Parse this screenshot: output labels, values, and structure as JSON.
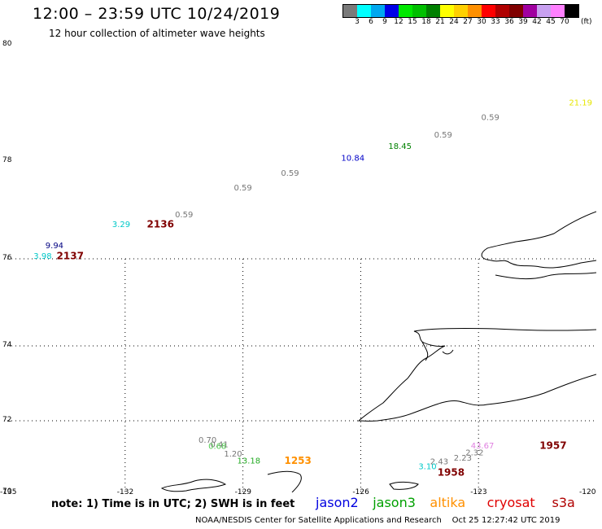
{
  "header": {
    "title": "12:00 – 23:59 UTC 10/24/2019",
    "subtitle": "12 hour collection of altimeter wave heights"
  },
  "colorbar": {
    "colors": [
      "#7a7a7a",
      "#00ffff",
      "#00a8f0",
      "#0000e8",
      "#00e800",
      "#00c000",
      "#008000",
      "#ffff00",
      "#ffd000",
      "#ff9000",
      "#ff0000",
      "#b00000",
      "#800000",
      "#a000a0",
      "#c8a0f0",
      "#ff80ff",
      "#000000"
    ],
    "labels": [
      "3",
      "6",
      "9",
      "12",
      "15",
      "18",
      "21",
      "24",
      "27",
      "30",
      "33",
      "36",
      "39",
      "42",
      "45",
      "70"
    ],
    "unit": "(ft)"
  },
  "map": {
    "lat_labels": [
      "80",
      "78",
      "76",
      "74",
      "72",
      "70"
    ],
    "lon_labels": [
      "-135",
      "-132",
      "-129",
      "-126",
      "-123",
      "-120"
    ],
    "observations": [
      {
        "text": "21.19",
        "color": "#e6e600",
        "lon": -120.4,
        "lat": 79.0
      },
      {
        "text": "0.59",
        "color": "#777777",
        "lon": -122.7,
        "lat": 78.75
      },
      {
        "text": "0.59",
        "color": "#777777",
        "lon": -123.9,
        "lat": 78.45
      },
      {
        "text": "18.45",
        "color": "#008000",
        "lon": -125.0,
        "lat": 78.25
      },
      {
        "text": "10.84",
        "color": "#0000c8",
        "lon": -126.2,
        "lat": 78.05
      },
      {
        "text": "0.59",
        "color": "#777777",
        "lon": -127.8,
        "lat": 77.75
      },
      {
        "text": "0.59",
        "color": "#777777",
        "lon": -129.0,
        "lat": 77.45
      },
      {
        "text": "0.59",
        "color": "#777777",
        "lon": -130.5,
        "lat": 76.9
      },
      {
        "text": "3.29",
        "color": "#00c8c8",
        "lon": -132.1,
        "lat": 76.7
      },
      {
        "text": "2136",
        "color": "#800000",
        "lon": -131.1,
        "lat": 76.7,
        "pass": true
      },
      {
        "text": "9.94",
        "color": "#000080",
        "lon": -133.8,
        "lat": 76.27
      },
      {
        "text": "3.98",
        "color": "#00c8c8",
        "lon": -134.1,
        "lat": 76.05
      },
      {
        "text": "2137",
        "color": "#800000",
        "lon": -133.4,
        "lat": 76.05,
        "pass": true
      },
      {
        "text": "0.70",
        "color": "#777777",
        "lon": -129.9,
        "lat": 71.45
      },
      {
        "text": "0.41",
        "color": "#777777",
        "lon": -129.6,
        "lat": 71.33
      },
      {
        "text": "0.68",
        "color": "#55cc55",
        "lon": -129.65,
        "lat": 71.28
      },
      {
        "text": "1.20",
        "color": "#777777",
        "lon": -129.25,
        "lat": 71.07
      },
      {
        "text": "13.18",
        "color": "#22aa22",
        "lon": -128.85,
        "lat": 70.88
      },
      {
        "text": "1253",
        "color": "#ff9000",
        "lon": -127.6,
        "lat": 70.88,
        "pass": true
      },
      {
        "text": "2.43",
        "color": "#777777",
        "lon": -124.0,
        "lat": 70.85
      },
      {
        "text": "2.23",
        "color": "#777777",
        "lon": -123.4,
        "lat": 70.95
      },
      {
        "text": "2.32",
        "color": "#777777",
        "lon": -123.1,
        "lat": 71.1
      },
      {
        "text": "43.67",
        "color": "#e080e0",
        "lon": -122.9,
        "lat": 71.3
      },
      {
        "text": "1957",
        "color": "#800000",
        "lon": -121.1,
        "lat": 71.3,
        "pass": true
      },
      {
        "text": "3.10",
        "color": "#00c8c8",
        "lon": -124.3,
        "lat": 70.72
      },
      {
        "text": "1958",
        "color": "#800000",
        "lon": -123.7,
        "lat": 70.55,
        "pass": true
      }
    ]
  },
  "legend": {
    "note": "note: 1) Time is in UTC; 2) SWH is in feet",
    "satellites": [
      {
        "name": "jason2",
        "color": "#0000e0"
      },
      {
        "name": "jason3",
        "color": "#00a000"
      },
      {
        "name": "altika",
        "color": "#ff9000"
      },
      {
        "name": "cryosat",
        "color": "#e00000"
      },
      {
        "name": "s3a",
        "color": "#b00000"
      }
    ]
  },
  "footer": {
    "credit": "NOAA/NESDIS Center for Satellite Applications and Research",
    "timestamp": "Oct 25 12:27:42 UTC 2019"
  }
}
